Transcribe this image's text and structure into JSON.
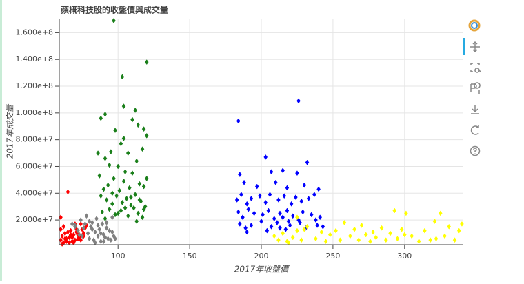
{
  "chart_data": {
    "type": "scatter",
    "title": "蘋概科技股的收盤價與成交量",
    "x_label": "2017年收盤價",
    "y_label": "2017年成交量",
    "marker": "diamond",
    "grid": true,
    "xlim": [
      59,
      341
    ],
    "ylim": [
      1500000,
      170000000
    ],
    "xticks": [
      100,
      150,
      200,
      250,
      300
    ],
    "yticks": [
      {
        "value": 20000000,
        "label": "2.000e+7"
      },
      {
        "value": 40000000,
        "label": "4.000e+7"
      },
      {
        "value": 60000000,
        "label": "6.000e+7"
      },
      {
        "value": 80000000,
        "label": "8.000e+7"
      },
      {
        "value": 100000000,
        "label": "1.000e+8"
      },
      {
        "value": 120000000,
        "label": "1.200e+8"
      },
      {
        "value": 140000000,
        "label": "1.400e+8"
      },
      {
        "value": 160000000,
        "label": "1.600e+8"
      }
    ],
    "series": [
      {
        "color": "#ff0000",
        "x": [
          60,
          61,
          62,
          63,
          64,
          65,
          66,
          67,
          68,
          69,
          70,
          71,
          72,
          73,
          74,
          75,
          76,
          77,
          60,
          62,
          64,
          66,
          68,
          70,
          72,
          74,
          76,
          65,
          61,
          63,
          67,
          69,
          71,
          73,
          60,
          78
        ],
        "values": [
          5000000.0,
          8000000.0,
          3000000.0,
          10000000.0,
          6000000.0,
          41000000.0,
          7000000.0,
          12000000.0,
          4000000.0,
          9000000.0,
          5000000.0,
          11000000.0,
          6000000.0,
          8000000.0,
          17000000.0,
          13000000.0,
          10000000.0,
          14000000.0,
          22000000.0,
          15000000.0,
          4000000.0,
          3000000.0,
          7000000.0,
          17000000.0,
          9000000.0,
          5000000.0,
          8000000.0,
          11000000.0,
          2000000.0,
          6000000.0,
          9000000.0,
          3000000.0,
          13000000.0,
          7000000.0,
          13000000.0,
          16000000.0
        ]
      },
      {
        "color": "#808080",
        "x": [
          68,
          70,
          72,
          74,
          75,
          76,
          78,
          79,
          80,
          81,
          82,
          83,
          84,
          85,
          86,
          87,
          88,
          89,
          90,
          91,
          92,
          93,
          94,
          95,
          96,
          97,
          70,
          73,
          77,
          80,
          84,
          88,
          92,
          96,
          98,
          82,
          86,
          90
        ],
        "values": [
          17000000.0,
          15000000.0,
          12000000.0,
          20000000.0,
          8000000.0,
          14000000.0,
          23000000.0,
          10000000.0,
          6000000.0,
          15000000.0,
          18000000.0,
          5000000.0,
          11000000.0,
          21000000.0,
          8000000.0,
          13000000.0,
          4000000.0,
          17000000.0,
          9000000.0,
          7000000.0,
          14000000.0,
          6000000.0,
          12000000.0,
          5000000.0,
          22000000.0,
          8000000.0,
          16000000.0,
          9000000.0,
          17000000.0,
          19000000.0,
          3000000.0,
          10000000.0,
          18000000.0,
          11000000.0,
          6000000.0,
          13000000.0,
          16000000.0,
          4000000.0
        ]
      },
      {
        "color": "#1a7f1a",
        "x": [
          97,
          103,
          120,
          104,
          112,
          110,
          114,
          91,
          88,
          98,
          104,
          118,
          120,
          102,
          95,
          117,
          86,
          107,
          91,
          94,
          113,
          100,
          120,
          87,
          105,
          97,
          110,
          90,
          93,
          101,
          108,
          115,
          118,
          88,
          92,
          96,
          99,
          103,
          106,
          109,
          112,
          116,
          119,
          89,
          94,
          98,
          102,
          107,
          111,
          114,
          117,
          91,
          100,
          105,
          113,
          118,
          96,
          104,
          109,
          115
        ],
        "values": [
          169000000.0,
          127000000.0,
          138000000.0,
          105000000.0,
          102000000.0,
          95000000.0,
          91000000.0,
          99000000.0,
          96000000.0,
          87000000.0,
          81000000.0,
          88000000.0,
          83000000.0,
          77000000.0,
          71000000.0,
          73000000.0,
          70000000.0,
          70000000.0,
          66000000.0,
          61000000.0,
          64000000.0,
          60000000.0,
          51000000.0,
          53000000.0,
          56000000.0,
          51000000.0,
          55000000.0,
          43000000.0,
          46000000.0,
          42000000.0,
          44000000.0,
          47000000.0,
          45000000.0,
          38000000.0,
          35000000.0,
          32000000.0,
          38000000.0,
          33000000.0,
          36000000.0,
          31000000.0,
          39000000.0,
          34000000.0,
          30000000.0,
          26000000.0,
          28000000.0,
          24000000.0,
          27000000.0,
          23000000.0,
          29000000.0,
          25000000.0,
          22000000.0,
          21000000.0,
          25000000.0,
          29000000.0,
          19000000.0,
          28000000.0,
          40000000.0,
          49000000.0,
          37000000.0,
          35000000.0
        ]
      },
      {
        "color": "#0000ff",
        "x": [
          184,
          226,
          203,
          232,
          185,
          207,
          215,
          225,
          188,
          197,
          210,
          218,
          230,
          240,
          183,
          186,
          190,
          193,
          199,
          203,
          206,
          212,
          216,
          221,
          224,
          228,
          233,
          237,
          184,
          187,
          191,
          195,
          201,
          205,
          209,
          213,
          215,
          218,
          222,
          226,
          229,
          235,
          238,
          241,
          185,
          189,
          193,
          200,
          207,
          211,
          217,
          220,
          227,
          231,
          239,
          243,
          190,
          204,
          213,
          219
        ],
        "values": [
          94000000.0,
          109000000.0,
          67000000.0,
          63000000.0,
          54000000.0,
          56000000.0,
          57000000.0,
          55000000.0,
          48000000.0,
          45000000.0,
          48000000.0,
          44000000.0,
          46000000.0,
          43000000.0,
          35000000.0,
          39000000.0,
          32000000.0,
          36000000.0,
          38000000.0,
          33000000.0,
          39000000.0,
          35000000.0,
          38000000.0,
          32000000.0,
          37000000.0,
          34000000.0,
          36000000.0,
          39000000.0,
          26000000.0,
          22000000.0,
          28000000.0,
          25000000.0,
          24000000.0,
          27000000.0,
          21000000.0,
          25000000.0,
          22000000.0,
          27000000.0,
          23000000.0,
          20000000.0,
          26000000.0,
          24000000.0,
          20000000.0,
          22000000.0,
          17000000.0,
          14000000.0,
          16000000.0,
          19000000.0,
          15000000.0,
          18000000.0,
          13000000.0,
          16000000.0,
          18000000.0,
          14000000.0,
          16000000.0,
          15000000.0,
          11000000.0,
          12000000.0,
          14000000.0,
          19000000.0
        ]
      },
      {
        "color": "#ffff00",
        "x": [
          209,
          212,
          215,
          218,
          222,
          225,
          228,
          232,
          225,
          230,
          238,
          245,
          248,
          252,
          255,
          258,
          262,
          265,
          268,
          270,
          273,
          276,
          280,
          284,
          287,
          290,
          293,
          295,
          298,
          301,
          305,
          310,
          314,
          318,
          321,
          325,
          328,
          331,
          335,
          338,
          340,
          219,
          242,
          278,
          300,
          322
        ],
        "values": [
          8000000.0,
          5000000.0,
          10000000.0,
          4000000.0,
          7000000.0,
          12000000.0,
          5000000.0,
          15000000.0,
          22000000.0,
          13000000.0,
          6000000.0,
          4000000.0,
          9000000.0,
          12000000.0,
          5000000.0,
          18000000.0,
          8000000.0,
          13000000.0,
          5000000.0,
          16000000.0,
          9000000.0,
          4000000.0,
          7000000.0,
          14000000.0,
          5000000.0,
          10000000.0,
          27000000.0,
          6000000.0,
          13000000.0,
          25000000.0,
          8000000.0,
          4000000.0,
          12000000.0,
          5000000.0,
          19000000.0,
          25000000.0,
          8000000.0,
          15000000.0,
          5000000.0,
          12000000.0,
          17000000.0,
          3000000.0,
          11000000.0,
          11000000.0,
          9000000.0,
          6000000.0
        ]
      }
    ]
  }
}
